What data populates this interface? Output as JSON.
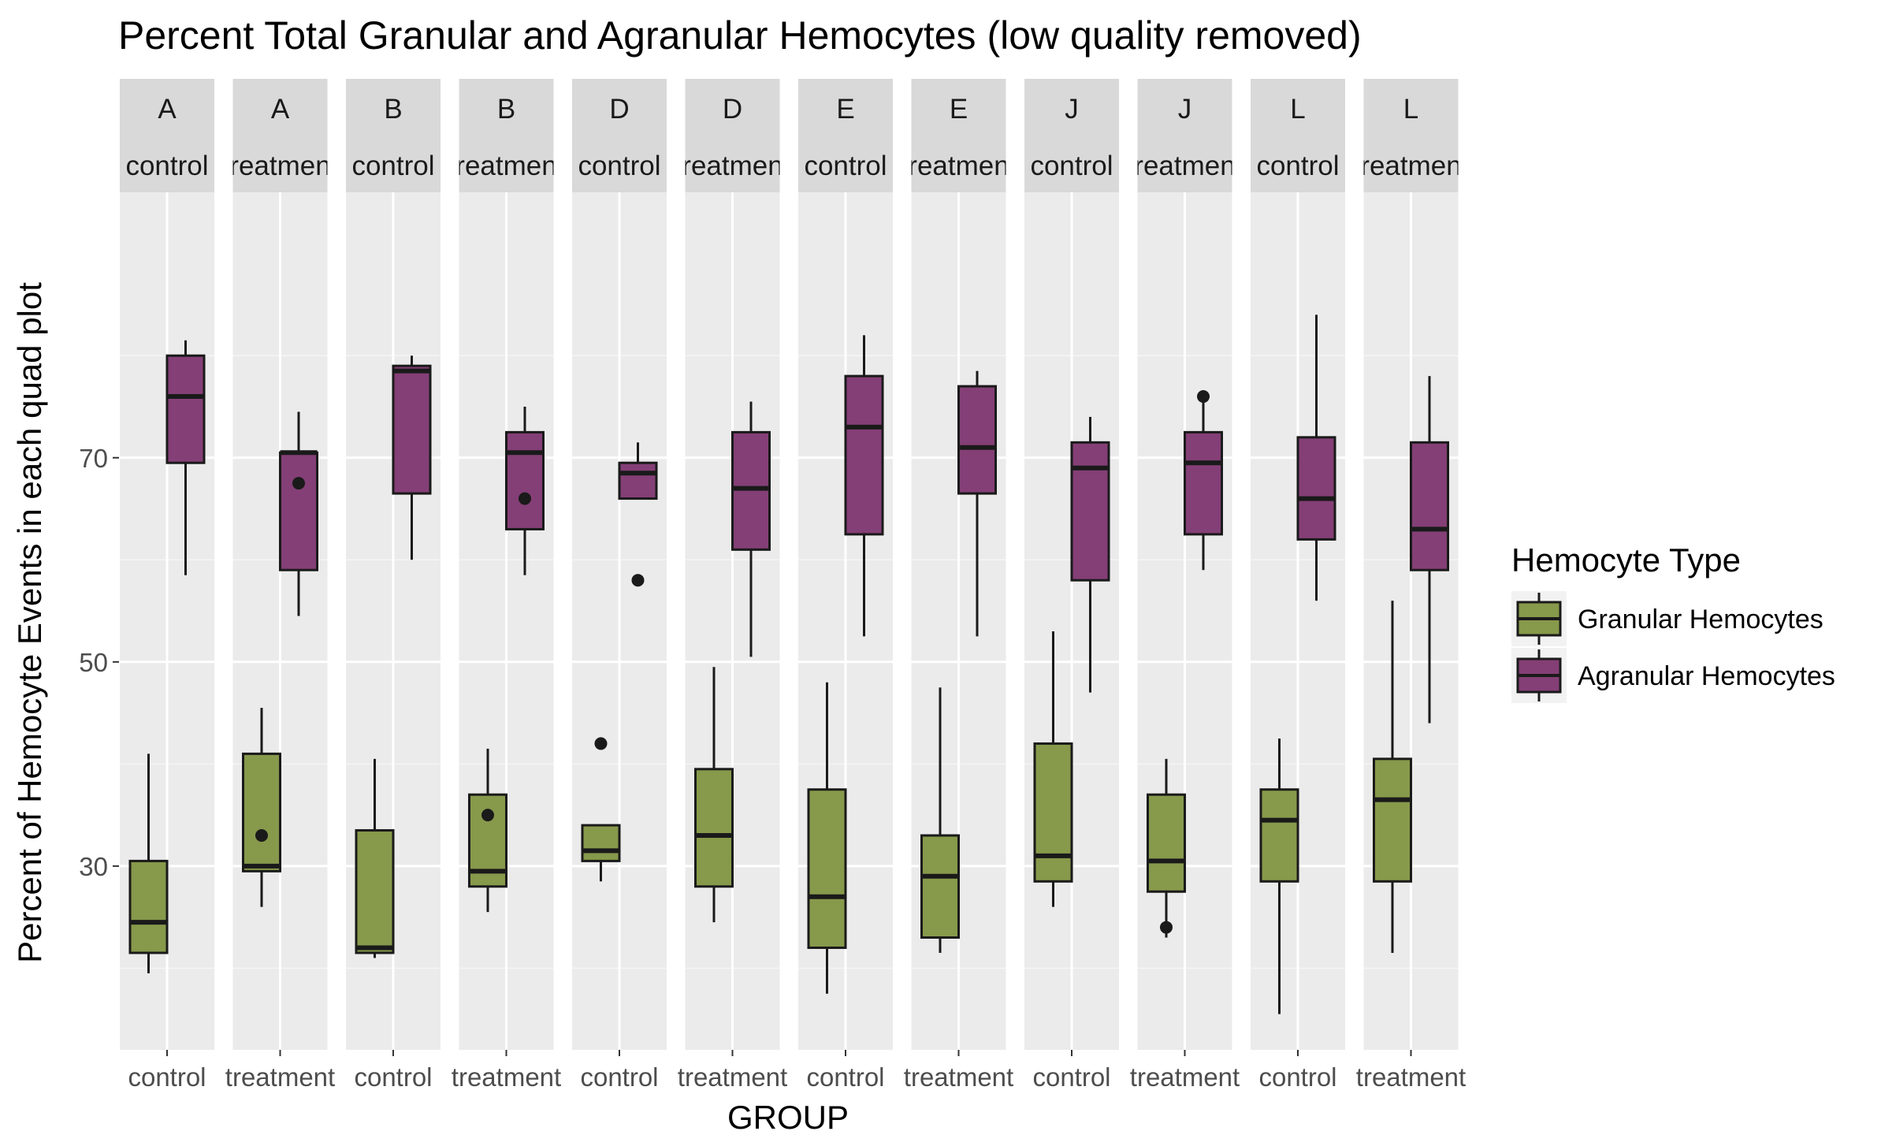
{
  "chart_data": {
    "type": "box",
    "title": "Percent Total Granular and Agranular Hemocytes (low quality removed)",
    "xlabel": "GROUP",
    "ylabel": "Percent of Hemocyte Events in each quad plot",
    "ylim": [
      12,
      96
    ],
    "yticks": [
      30,
      50,
      70
    ],
    "grid": true,
    "legend": {
      "title": "Hemocyte Type",
      "position": "right",
      "entries": [
        {
          "label": "Granular Hemocytes",
          "color": "#87994b"
        },
        {
          "label": "Agranular Hemocytes",
          "color": "#843f76"
        }
      ]
    },
    "facets": [
      {
        "strip_top": "A",
        "strip_bottom": "control",
        "xlabel": "control",
        "boxes": [
          {
            "series": "Granular Hemocytes",
            "min": 19.5,
            "q1": 21.5,
            "median": 24.5,
            "q3": 30.5,
            "max": 41,
            "outliers": []
          },
          {
            "series": "Agranular Hemocytes",
            "min": 58.5,
            "q1": 69.5,
            "median": 76,
            "q3": 80,
            "max": 81.5,
            "outliers": []
          }
        ]
      },
      {
        "strip_top": "A",
        "strip_bottom": "treatment",
        "xlabel": "treatment",
        "boxes": [
          {
            "series": "Granular Hemocytes",
            "min": 26,
            "q1": 29.5,
            "median": 30,
            "q3": 41,
            "max": 45.5,
            "outliers": [
              33
            ]
          },
          {
            "series": "Agranular Hemocytes",
            "min": 54.5,
            "q1": 59,
            "median": 70.5,
            "q3": 70.5,
            "max": 74.5,
            "outliers": [
              67.5
            ]
          }
        ]
      },
      {
        "strip_top": "B",
        "strip_bottom": "control",
        "xlabel": "control",
        "boxes": [
          {
            "series": "Granular Hemocytes",
            "min": 21,
            "q1": 21.5,
            "median": 22,
            "q3": 33.5,
            "max": 40.5,
            "outliers": []
          },
          {
            "series": "Agranular Hemocytes",
            "min": 60,
            "q1": 66.5,
            "median": 78.5,
            "q3": 79,
            "max": 80,
            "outliers": []
          }
        ]
      },
      {
        "strip_top": "B",
        "strip_bottom": "treatment",
        "xlabel": "treatment",
        "boxes": [
          {
            "series": "Granular Hemocytes",
            "min": 25.5,
            "q1": 28,
            "median": 29.5,
            "q3": 37,
            "max": 41.5,
            "outliers": [
              35
            ]
          },
          {
            "series": "Agranular Hemocytes",
            "min": 58.5,
            "q1": 63,
            "median": 70.5,
            "q3": 72.5,
            "max": 75,
            "outliers": [
              66
            ]
          }
        ]
      },
      {
        "strip_top": "D",
        "strip_bottom": "control",
        "xlabel": "control",
        "boxes": [
          {
            "series": "Granular Hemocytes",
            "min": 28.5,
            "q1": 30.5,
            "median": 31.5,
            "q3": 34,
            "max": 34,
            "outliers": [
              42
            ]
          },
          {
            "series": "Agranular Hemocytes",
            "min": 66,
            "q1": 66,
            "median": 68.5,
            "q3": 69.5,
            "max": 71.5,
            "outliers": [
              58
            ]
          }
        ]
      },
      {
        "strip_top": "D",
        "strip_bottom": "treatment",
        "xlabel": "treatment",
        "boxes": [
          {
            "series": "Granular Hemocytes",
            "min": 24.5,
            "q1": 28,
            "median": 33,
            "q3": 39.5,
            "max": 49.5,
            "outliers": []
          },
          {
            "series": "Agranular Hemocytes",
            "min": 50.5,
            "q1": 61,
            "median": 67,
            "q3": 72.5,
            "max": 75.5,
            "outliers": []
          }
        ]
      },
      {
        "strip_top": "E",
        "strip_bottom": "control",
        "xlabel": "control",
        "boxes": [
          {
            "series": "Granular Hemocytes",
            "min": 17.5,
            "q1": 22,
            "median": 27,
            "q3": 37.5,
            "max": 48,
            "outliers": []
          },
          {
            "series": "Agranular Hemocytes",
            "min": 52.5,
            "q1": 62.5,
            "median": 73,
            "q3": 78,
            "max": 82,
            "outliers": []
          }
        ]
      },
      {
        "strip_top": "E",
        "strip_bottom": "treatment",
        "xlabel": "treatment",
        "boxes": [
          {
            "series": "Granular Hemocytes",
            "min": 21.5,
            "q1": 23,
            "median": 29,
            "q3": 33,
            "max": 47.5,
            "outliers": []
          },
          {
            "series": "Agranular Hemocytes",
            "min": 52.5,
            "q1": 66.5,
            "median": 71,
            "q3": 77,
            "max": 78.5,
            "outliers": []
          }
        ]
      },
      {
        "strip_top": "J",
        "strip_bottom": "control",
        "xlabel": "control",
        "boxes": [
          {
            "series": "Granular Hemocytes",
            "min": 26,
            "q1": 28.5,
            "median": 31,
            "q3": 42,
            "max": 53,
            "outliers": []
          },
          {
            "series": "Agranular Hemocytes",
            "min": 47,
            "q1": 58,
            "median": 69,
            "q3": 71.5,
            "max": 74,
            "outliers": []
          }
        ]
      },
      {
        "strip_top": "J",
        "strip_bottom": "treatment",
        "xlabel": "treatment",
        "boxes": [
          {
            "series": "Granular Hemocytes",
            "min": 23,
            "q1": 27.5,
            "median": 30.5,
            "q3": 37,
            "max": 40.5,
            "outliers": [
              24
            ]
          },
          {
            "series": "Agranular Hemocytes",
            "min": 59,
            "q1": 62.5,
            "median": 69.5,
            "q3": 72.5,
            "max": 76.5,
            "outliers": [
              76
            ]
          }
        ]
      },
      {
        "strip_top": "L",
        "strip_bottom": "control",
        "xlabel": "control",
        "boxes": [
          {
            "series": "Granular Hemocytes",
            "min": 15.5,
            "q1": 28.5,
            "median": 34.5,
            "q3": 37.5,
            "max": 42.5,
            "outliers": []
          },
          {
            "series": "Agranular Hemocytes",
            "min": 56,
            "q1": 62,
            "median": 66,
            "q3": 72,
            "max": 84,
            "outliers": []
          }
        ]
      },
      {
        "strip_top": "L",
        "strip_bottom": "treatment",
        "xlabel": "treatment",
        "boxes": [
          {
            "series": "Granular Hemocytes",
            "min": 21.5,
            "q1": 28.5,
            "median": 36.5,
            "q3": 40.5,
            "max": 56,
            "outliers": []
          },
          {
            "series": "Agranular Hemocytes",
            "min": 44,
            "q1": 59,
            "median": 63,
            "q3": 71.5,
            "max": 78,
            "outliers": []
          }
        ]
      }
    ]
  }
}
